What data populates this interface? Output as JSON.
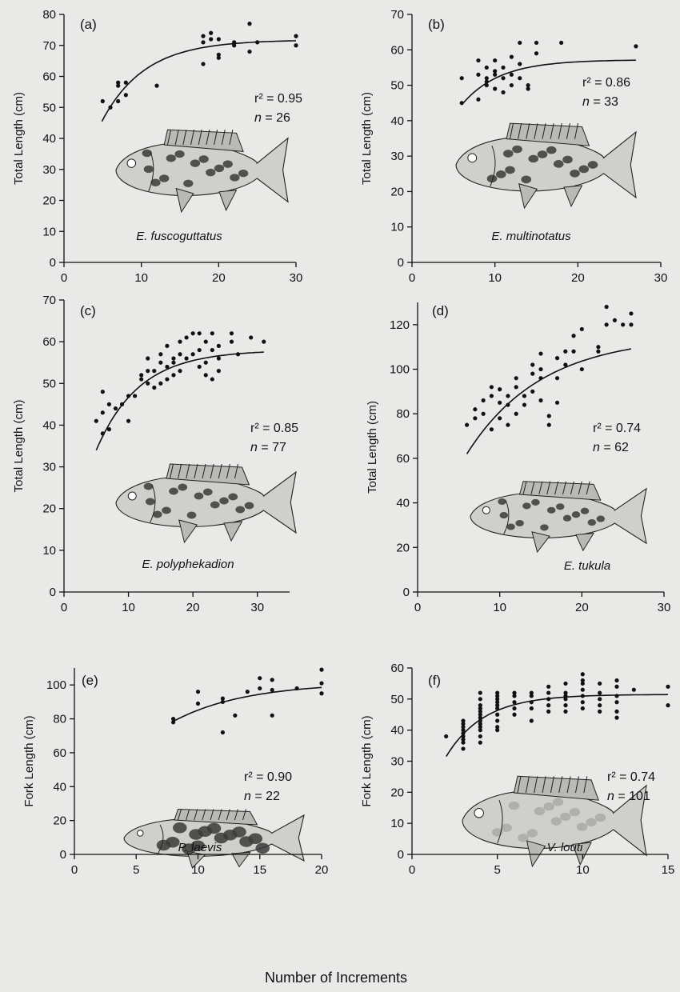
{
  "figure": {
    "xlabel": "Number of Increments"
  },
  "chart_data": [
    {
      "type": "scatter",
      "panel": "(a)",
      "species": "E. fuscoguttatus",
      "r2": "r² = 0.95",
      "n": "n = 26",
      "ylabel": "Total Length (cm)",
      "xlim": [
        0,
        30
      ],
      "ylim": [
        0,
        80
      ],
      "xticks": [
        0,
        10,
        20,
        30
      ],
      "yticks": [
        0,
        10,
        20,
        30,
        40,
        50,
        60,
        70,
        80
      ],
      "points": [
        [
          5,
          52
        ],
        [
          6,
          50
        ],
        [
          7,
          52
        ],
        [
          7,
          57
        ],
        [
          8,
          54
        ],
        [
          8,
          58
        ],
        [
          7,
          58
        ],
        [
          12,
          57
        ],
        [
          18,
          64
        ],
        [
          18,
          71
        ],
        [
          18,
          73
        ],
        [
          19,
          72
        ],
        [
          19,
          74
        ],
        [
          20,
          72
        ],
        [
          20,
          67
        ],
        [
          20,
          66
        ],
        [
          22,
          71
        ],
        [
          22,
          70
        ],
        [
          24,
          77
        ],
        [
          24,
          68
        ],
        [
          25,
          71
        ],
        [
          30,
          73
        ],
        [
          30,
          70
        ]
      ],
      "fit": {
        "Linf": 71.8,
        "K": 0.18,
        "x0": 4.9,
        "y0": 45.5,
        "xmax": 30
      }
    },
    {
      "type": "scatter",
      "panel": "(b)",
      "species": "E. multinotatus",
      "r2": "r² = 0.86",
      "n": "n = 33",
      "ylabel": "Total Length (cm)",
      "xlim": [
        0,
        30
      ],
      "ylim": [
        0,
        70
      ],
      "xticks": [
        0,
        10,
        20,
        30
      ],
      "yticks": [
        0,
        10,
        20,
        30,
        40,
        50,
        60,
        70
      ],
      "points": [
        [
          6,
          45
        ],
        [
          6,
          52
        ],
        [
          8,
          57
        ],
        [
          8,
          46
        ],
        [
          8,
          53
        ],
        [
          9,
          51
        ],
        [
          9,
          55
        ],
        [
          9,
          52
        ],
        [
          9,
          50
        ],
        [
          10,
          53
        ],
        [
          10,
          57
        ],
        [
          10,
          49
        ],
        [
          10,
          54
        ],
        [
          11,
          55
        ],
        [
          11,
          52
        ],
        [
          11,
          48
        ],
        [
          12,
          58
        ],
        [
          12,
          53
        ],
        [
          12,
          50
        ],
        [
          13,
          62
        ],
        [
          13,
          56
        ],
        [
          13,
          52
        ],
        [
          14,
          50
        ],
        [
          14,
          49
        ],
        [
          15,
          62
        ],
        [
          15,
          59
        ],
        [
          18,
          62
        ],
        [
          27,
          61
        ]
      ],
      "fit": {
        "Linf": 57.2,
        "K": 0.22,
        "x0": 6.0,
        "y0": 44.5,
        "xmax": 27
      }
    },
    {
      "type": "scatter",
      "panel": "(c)",
      "species": "E. polyphekadion",
      "r2": "r² = 0.85",
      "n": "n = 77",
      "ylabel": "Total Length (cm)",
      "xlim": [
        0,
        35
      ],
      "ylim": [
        0,
        70
      ],
      "xticks": [
        0,
        10,
        20,
        30
      ],
      "yticks": [
        0,
        10,
        20,
        30,
        40,
        50,
        60,
        70
      ],
      "points": [
        [
          5,
          41
        ],
        [
          6,
          38
        ],
        [
          6,
          43
        ],
        [
          6,
          48
        ],
        [
          7,
          45
        ],
        [
          7,
          39
        ],
        [
          8,
          44
        ],
        [
          9,
          45
        ],
        [
          10,
          47
        ],
        [
          10,
          41
        ],
        [
          11,
          47
        ],
        [
          12,
          51
        ],
        [
          12,
          52
        ],
        [
          13,
          56
        ],
        [
          13,
          50
        ],
        [
          13,
          53
        ],
        [
          14,
          49
        ],
        [
          14,
          53
        ],
        [
          15,
          55
        ],
        [
          15,
          50
        ],
        [
          15,
          57
        ],
        [
          16,
          54
        ],
        [
          16,
          51
        ],
        [
          16,
          59
        ],
        [
          17,
          56
        ],
        [
          17,
          52
        ],
        [
          17,
          55
        ],
        [
          18,
          60
        ],
        [
          18,
          57
        ],
        [
          18,
          53
        ],
        [
          19,
          56
        ],
        [
          19,
          61
        ],
        [
          20,
          62
        ],
        [
          20,
          57
        ],
        [
          21,
          62
        ],
        [
          21,
          58
        ],
        [
          21,
          54
        ],
        [
          22,
          60
        ],
        [
          22,
          55
        ],
        [
          22,
          52
        ],
        [
          23,
          62
        ],
        [
          23,
          58
        ],
        [
          23,
          51
        ],
        [
          24,
          59
        ],
        [
          24,
          56
        ],
        [
          24,
          53
        ],
        [
          26,
          62
        ],
        [
          26,
          60
        ],
        [
          27,
          57
        ],
        [
          29,
          61
        ],
        [
          31,
          60
        ]
      ],
      "fit": {
        "Linf": 58.0,
        "K": 0.15,
        "x0": 5.0,
        "y0": 34.0,
        "xmax": 31
      }
    },
    {
      "type": "scatter",
      "panel": "(d)",
      "species": "E. tukula",
      "r2": "r² = 0.74",
      "n": "n = 62",
      "ylabel": "Total Length (cm)",
      "xlim": [
        0,
        30
      ],
      "ylim": [
        0,
        130
      ],
      "xticks": [
        0,
        10,
        20,
        30
      ],
      "yticks": [
        0,
        20,
        40,
        60,
        80,
        100,
        120
      ],
      "points": [
        [
          6,
          75
        ],
        [
          7,
          78
        ],
        [
          7,
          82
        ],
        [
          8,
          86
        ],
        [
          8,
          80
        ],
        [
          9,
          92
        ],
        [
          9,
          88
        ],
        [
          9,
          73
        ],
        [
          10,
          85
        ],
        [
          10,
          91
        ],
        [
          10,
          78
        ],
        [
          11,
          84
        ],
        [
          11,
          88
        ],
        [
          11,
          75
        ],
        [
          12,
          92
        ],
        [
          12,
          96
        ],
        [
          12,
          80
        ],
        [
          13,
          88
        ],
        [
          13,
          84
        ],
        [
          14,
          98
        ],
        [
          14,
          102
        ],
        [
          14,
          90
        ],
        [
          15,
          107
        ],
        [
          15,
          100
        ],
        [
          15,
          96
        ],
        [
          15,
          86
        ],
        [
          16,
          79
        ],
        [
          16,
          75
        ],
        [
          17,
          105
        ],
        [
          17,
          96
        ],
        [
          17,
          85
        ],
        [
          18,
          108
        ],
        [
          18,
          102
        ],
        [
          19,
          115
        ],
        [
          19,
          108
        ],
        [
          20,
          118
        ],
        [
          20,
          100
        ],
        [
          22,
          110
        ],
        [
          22,
          108
        ],
        [
          23,
          128
        ],
        [
          23,
          120
        ],
        [
          24,
          122
        ],
        [
          25,
          120
        ],
        [
          26,
          125
        ],
        [
          26,
          120
        ]
      ],
      "fit": {
        "Linf": 115.0,
        "K": 0.11,
        "x0": 6.0,
        "y0": 62.0,
        "xmax": 26
      }
    },
    {
      "type": "scatter",
      "panel": "(e)",
      "species": "P. laevis",
      "r2": "r² = 0.90",
      "n": "n = 22",
      "ylabel": "Fork Length (cm)",
      "xlim": [
        0,
        20
      ],
      "ylim": [
        0,
        110
      ],
      "xticks": [
        0,
        5,
        10,
        15,
        20
      ],
      "yticks": [
        0,
        20,
        40,
        60,
        80,
        100
      ],
      "points": [
        [
          8,
          80
        ],
        [
          8,
          78
        ],
        [
          10,
          96
        ],
        [
          10,
          89
        ],
        [
          12,
          92
        ],
        [
          12,
          90
        ],
        [
          12,
          72
        ],
        [
          13,
          82
        ],
        [
          14,
          96
        ],
        [
          15,
          104
        ],
        [
          15,
          98
        ],
        [
          16,
          103
        ],
        [
          16,
          97
        ],
        [
          16,
          82
        ],
        [
          18,
          98
        ],
        [
          20,
          109
        ],
        [
          20,
          101
        ],
        [
          20,
          95
        ]
      ],
      "fit": {
        "Linf": 101.5,
        "K": 0.17,
        "x0": 8.0,
        "y0": 78.5,
        "xmax": 20
      }
    },
    {
      "type": "scatter",
      "panel": "(f)",
      "species": "V. louti",
      "r2": "r² = 0.74",
      "n": "n = 101",
      "ylabel": "Fork Length (cm)",
      "xlim": [
        0,
        15
      ],
      "ylim": [
        0,
        60
      ],
      "xticks": [
        0,
        5,
        10,
        15
      ],
      "yticks": [
        0,
        10,
        20,
        30,
        40,
        50,
        60
      ],
      "points": [
        [
          2,
          38
        ],
        [
          3,
          34
        ],
        [
          3,
          36
        ],
        [
          3,
          37
        ],
        [
          3,
          38
        ],
        [
          3,
          39
        ],
        [
          3,
          40
        ],
        [
          3,
          41
        ],
        [
          3,
          42
        ],
        [
          3,
          43
        ],
        [
          4,
          36
        ],
        [
          4,
          38
        ],
        [
          4,
          40
        ],
        [
          4,
          41
        ],
        [
          4,
          42
        ],
        [
          4,
          43
        ],
        [
          4,
          44
        ],
        [
          4,
          45
        ],
        [
          4,
          46
        ],
        [
          4,
          47
        ],
        [
          4,
          48
        ],
        [
          4,
          50
        ],
        [
          4,
          52
        ],
        [
          5,
          40
        ],
        [
          5,
          41
        ],
        [
          5,
          43
        ],
        [
          5,
          45
        ],
        [
          5,
          47
        ],
        [
          5,
          48
        ],
        [
          5,
          49
        ],
        [
          5,
          50
        ],
        [
          5,
          51
        ],
        [
          5,
          52
        ],
        [
          6,
          45
        ],
        [
          6,
          47
        ],
        [
          6,
          49
        ],
        [
          6,
          51
        ],
        [
          6,
          52
        ],
        [
          7,
          43
        ],
        [
          7,
          47
        ],
        [
          7,
          49
        ],
        [
          7,
          51
        ],
        [
          7,
          52
        ],
        [
          8,
          46
        ],
        [
          8,
          48
        ],
        [
          8,
          50
        ],
        [
          8,
          52
        ],
        [
          8,
          54
        ],
        [
          9,
          46
        ],
        [
          9,
          48
        ],
        [
          9,
          50
        ],
        [
          9,
          51
        ],
        [
          9,
          52
        ],
        [
          9,
          55
        ],
        [
          10,
          47
        ],
        [
          10,
          49
        ],
        [
          10,
          51
        ],
        [
          10,
          53
        ],
        [
          10,
          55
        ],
        [
          10,
          56
        ],
        [
          10,
          58
        ],
        [
          11,
          46
        ],
        [
          11,
          48
        ],
        [
          11,
          50
        ],
        [
          11,
          52
        ],
        [
          11,
          55
        ],
        [
          12,
          44
        ],
        [
          12,
          46
        ],
        [
          12,
          49
        ],
        [
          12,
          51
        ],
        [
          12,
          54
        ],
        [
          12,
          56
        ],
        [
          13,
          53
        ],
        [
          15,
          54
        ],
        [
          15,
          48
        ]
      ],
      "fit": {
        "Linf": 51.5,
        "K": 0.45,
        "x0": 2.0,
        "y0": 31.5,
        "xmax": 15
      }
    }
  ]
}
